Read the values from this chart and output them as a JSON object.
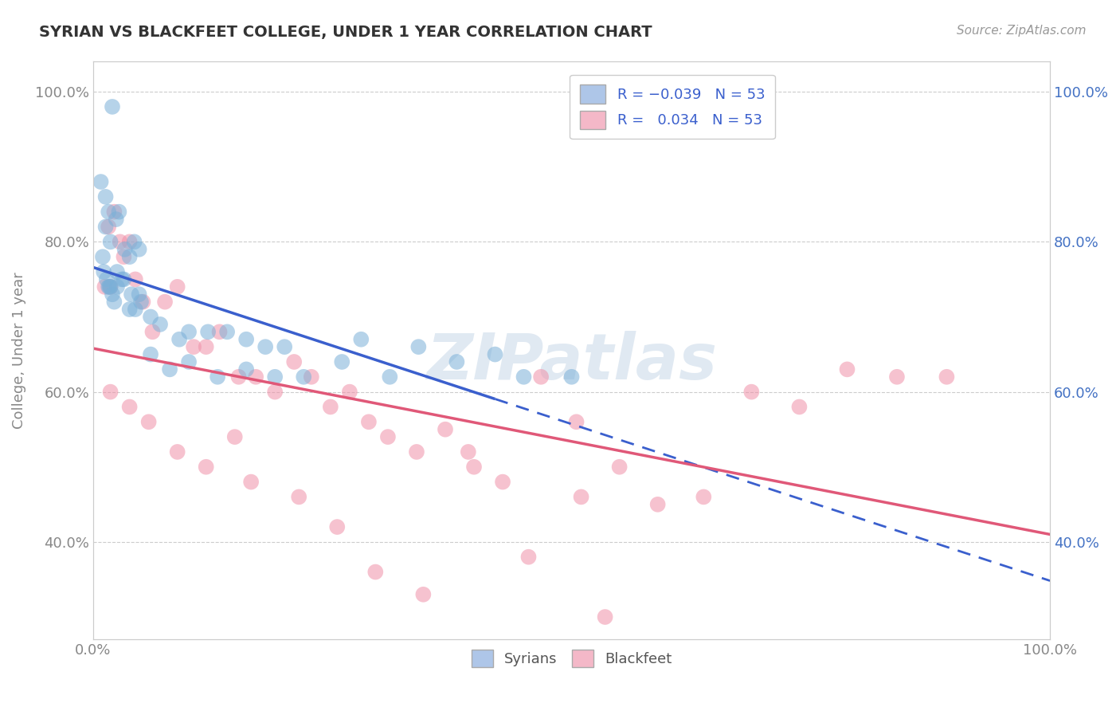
{
  "title": "SYRIAN VS BLACKFEET COLLEGE, UNDER 1 YEAR CORRELATION CHART",
  "source": "Source: ZipAtlas.com",
  "ylabel": "College, Under 1 year",
  "xlim": [
    0.0,
    1.0
  ],
  "ymin": 0.27,
  "ymax": 1.04,
  "yticks": [
    0.4,
    0.6,
    0.8,
    1.0
  ],
  "ytick_labels": [
    "40.0%",
    "60.0%",
    "80.0%",
    "100.0%"
  ],
  "xticks": [
    0.0,
    1.0
  ],
  "xtick_labels": [
    "0.0%",
    "100.0%"
  ],
  "legend_bottom": [
    "Syrians",
    "Blackfeet"
  ],
  "syrians_x": [
    0.02,
    0.008,
    0.013,
    0.016,
    0.024,
    0.013,
    0.018,
    0.027,
    0.01,
    0.011,
    0.014,
    0.017,
    0.02,
    0.025,
    0.033,
    0.038,
    0.043,
    0.048,
    0.016,
    0.022,
    0.03,
    0.018,
    0.025,
    0.032,
    0.04,
    0.048,
    0.038,
    0.044,
    0.05,
    0.07,
    0.09,
    0.12,
    0.16,
    0.2,
    0.28,
    0.34,
    0.42,
    0.06,
    0.1,
    0.14,
    0.18,
    0.06,
    0.08,
    0.1,
    0.13,
    0.16,
    0.19,
    0.22,
    0.26,
    0.31,
    0.38,
    0.45,
    0.5
  ],
  "syrians_y": [
    0.98,
    0.88,
    0.86,
    0.84,
    0.83,
    0.82,
    0.8,
    0.84,
    0.78,
    0.76,
    0.75,
    0.74,
    0.73,
    0.76,
    0.79,
    0.78,
    0.8,
    0.79,
    0.74,
    0.72,
    0.75,
    0.74,
    0.74,
    0.75,
    0.73,
    0.73,
    0.71,
    0.71,
    0.72,
    0.69,
    0.67,
    0.68,
    0.67,
    0.66,
    0.67,
    0.66,
    0.65,
    0.7,
    0.68,
    0.68,
    0.66,
    0.65,
    0.63,
    0.64,
    0.62,
    0.63,
    0.62,
    0.62,
    0.64,
    0.62,
    0.64,
    0.62,
    0.62
  ],
  "blackfeet_x": [
    0.016,
    0.022,
    0.032,
    0.038,
    0.012,
    0.018,
    0.028,
    0.044,
    0.052,
    0.062,
    0.075,
    0.088,
    0.105,
    0.118,
    0.132,
    0.152,
    0.17,
    0.19,
    0.21,
    0.228,
    0.248,
    0.268,
    0.288,
    0.308,
    0.338,
    0.368,
    0.398,
    0.428,
    0.468,
    0.51,
    0.55,
    0.59,
    0.638,
    0.688,
    0.738,
    0.788,
    0.84,
    0.892,
    0.018,
    0.038,
    0.058,
    0.088,
    0.118,
    0.148,
    0.165,
    0.215,
    0.255,
    0.295,
    0.345,
    0.392,
    0.455,
    0.505,
    0.535
  ],
  "blackfeet_y": [
    0.82,
    0.84,
    0.78,
    0.8,
    0.74,
    0.74,
    0.8,
    0.75,
    0.72,
    0.68,
    0.72,
    0.74,
    0.66,
    0.66,
    0.68,
    0.62,
    0.62,
    0.6,
    0.64,
    0.62,
    0.58,
    0.6,
    0.56,
    0.54,
    0.52,
    0.55,
    0.5,
    0.48,
    0.62,
    0.46,
    0.5,
    0.45,
    0.46,
    0.6,
    0.58,
    0.63,
    0.62,
    0.62,
    0.6,
    0.58,
    0.56,
    0.52,
    0.5,
    0.54,
    0.48,
    0.46,
    0.42,
    0.36,
    0.33,
    0.52,
    0.38,
    0.56,
    0.3
  ],
  "background_color": "#ffffff",
  "grid_color": "#cccccc",
  "syrian_dot_color": "#7ab0d8",
  "blackfeet_dot_color": "#f090a8",
  "syrian_line_color": "#3a5fcd",
  "blackfeet_line_color": "#e05878",
  "syrian_line_solid_end": 0.42,
  "watermark": "ZIPatlas",
  "R_syrian": -0.039,
  "R_blackfeet": 0.034,
  "N": 53,
  "legend_blue_color": "#aec6e8",
  "legend_pink_color": "#f4b8c8",
  "tick_color_left": "#888888",
  "tick_color_right": "#4472c4"
}
